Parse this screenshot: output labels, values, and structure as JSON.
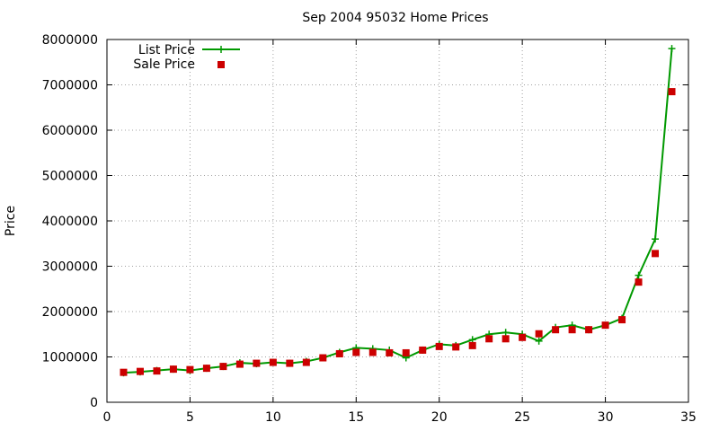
{
  "chart_data": {
    "type": "line",
    "title": "Sep 2004 95032 Home Prices",
    "xlabel": "",
    "ylabel": "Price",
    "xlim": [
      0,
      35
    ],
    "ylim": [
      0,
      8000000
    ],
    "xticks": [
      0,
      5,
      10,
      15,
      20,
      25,
      30,
      35
    ],
    "yticks": [
      0,
      1000000,
      2000000,
      3000000,
      4000000,
      5000000,
      6000000,
      7000000,
      8000000
    ],
    "grid": true,
    "legend_position": "top-left",
    "x": [
      1,
      2,
      3,
      4,
      5,
      6,
      7,
      8,
      9,
      10,
      11,
      12,
      13,
      14,
      15,
      16,
      17,
      18,
      19,
      20,
      21,
      22,
      23,
      24,
      25,
      26,
      27,
      28,
      29,
      30,
      31,
      32,
      33,
      34
    ],
    "series": [
      {
        "name": "List Price",
        "style": "lines+plus",
        "color": "#009900",
        "values": [
          650000,
          670000,
          700000,
          730000,
          700000,
          750000,
          790000,
          870000,
          850000,
          880000,
          860000,
          900000,
          980000,
          1100000,
          1200000,
          1180000,
          1150000,
          980000,
          1150000,
          1280000,
          1250000,
          1380000,
          1500000,
          1540000,
          1500000,
          1350000,
          1650000,
          1700000,
          1600000,
          1700000,
          1850000,
          2800000,
          3600000,
          7800000
        ]
      },
      {
        "name": "Sale Price",
        "style": "points",
        "color": "#cc0000",
        "values": [
          660000,
          680000,
          690000,
          730000,
          720000,
          750000,
          790000,
          840000,
          860000,
          880000,
          860000,
          880000,
          980000,
          1070000,
          1100000,
          1100000,
          1090000,
          1090000,
          1150000,
          1230000,
          1220000,
          1250000,
          1400000,
          1400000,
          1430000,
          1510000,
          1600000,
          1600000,
          1600000,
          1700000,
          1820000,
          2650000,
          3280000,
          6850000
        ]
      }
    ]
  }
}
